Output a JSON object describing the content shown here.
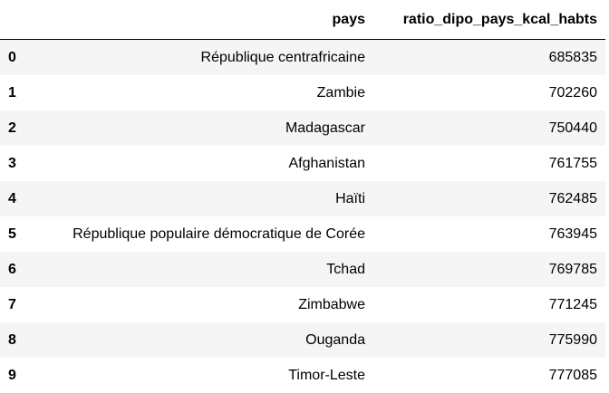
{
  "table": {
    "columns": {
      "index": "",
      "pays": "pays",
      "ratio": "ratio_dipo_pays_kcal_habts"
    },
    "rows": [
      {
        "index": "0",
        "pays": "République centrafricaine",
        "ratio": "685835"
      },
      {
        "index": "1",
        "pays": "Zambie",
        "ratio": "702260"
      },
      {
        "index": "2",
        "pays": "Madagascar",
        "ratio": "750440"
      },
      {
        "index": "3",
        "pays": "Afghanistan",
        "ratio": "761755"
      },
      {
        "index": "4",
        "pays": "Haïti",
        "ratio": "762485"
      },
      {
        "index": "5",
        "pays": "République populaire démocratique de Corée",
        "ratio": "763945"
      },
      {
        "index": "6",
        "pays": "Tchad",
        "ratio": "769785"
      },
      {
        "index": "7",
        "pays": "Zimbabwe",
        "ratio": "771245"
      },
      {
        "index": "8",
        "pays": "Ouganda",
        "ratio": "775990"
      },
      {
        "index": "9",
        "pays": "Timor-Leste",
        "ratio": "777085"
      }
    ]
  },
  "colors": {
    "row_stripe": "#f5f5f5",
    "row_plain": "#ffffff",
    "header_rule": "#000000",
    "text": "#000000"
  }
}
